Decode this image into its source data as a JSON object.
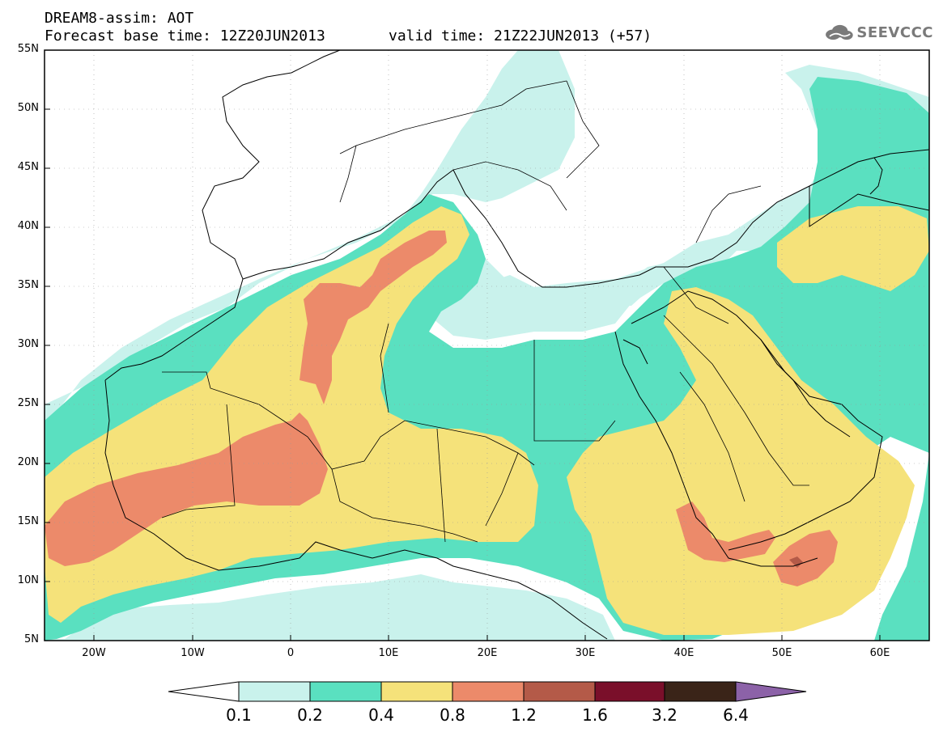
{
  "header": {
    "title_line1": "DREAM8-assim: AOT",
    "title_line2": "Forecast base time: 12Z20JUN2013",
    "valid_time": "valid time: 21Z22JUN2013 (+57)",
    "logo_text": "SEEVCCC",
    "logo_icon": "cloud-logo-icon"
  },
  "axes": {
    "lat_labels": [
      "55N",
      "50N",
      "45N",
      "40N",
      "35N",
      "30N",
      "25N",
      "20N",
      "15N",
      "10N",
      "5N"
    ],
    "lon_labels": [
      "20W",
      "10W",
      "0",
      "10E",
      "20E",
      "30E",
      "40E",
      "50E",
      "60E"
    ]
  },
  "colorbar": {
    "labels": [
      "0.1",
      "0.2",
      "0.4",
      "0.8",
      "1.2",
      "1.6",
      "3.2",
      "6.4"
    ],
    "colors": [
      "#c9f2ec",
      "#5ae0c0",
      "#f5e27a",
      "#ec8a6a",
      "#b45a48",
      "#7a0f2a",
      "#3a2418",
      "#8c62a8"
    ]
  },
  "colors": {
    "c1": "#c9f2ec",
    "c2": "#5ae0c0",
    "c3": "#f5e27a",
    "c4": "#ec8a6a",
    "c5": "#b45a48",
    "c6": "#7a0f2a"
  }
}
